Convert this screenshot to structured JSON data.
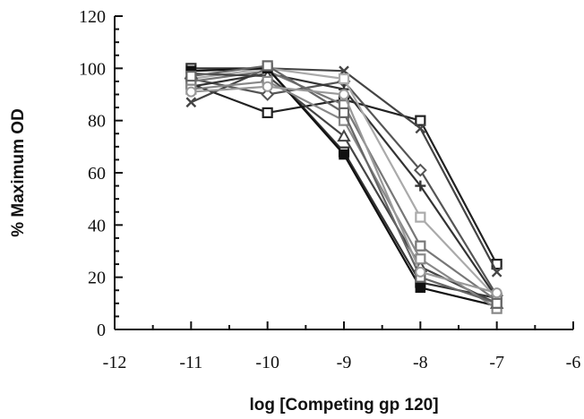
{
  "chart_data": {
    "type": "line",
    "title": "",
    "xlabel": "log [Competing gp 120]",
    "ylabel": "% Maximum OD",
    "xlim": [
      -12,
      -6
    ],
    "ylim": [
      0,
      120
    ],
    "x_ticks": [
      -12,
      -11,
      -10,
      -9,
      -8,
      -7,
      -6
    ],
    "y_ticks": [
      0,
      20,
      40,
      60,
      80,
      100,
      120
    ],
    "x_tick_labels": [
      "-12",
      "-11",
      "-10",
      "-9",
      "-8",
      "-7",
      "-6"
    ],
    "y_tick_labels": [
      "0",
      "20",
      "40",
      "60",
      "80",
      "100",
      "120"
    ],
    "grid": false,
    "legend": "none",
    "x": [
      -11,
      -10,
      -9,
      -8,
      -7
    ],
    "series": [
      {
        "marker": "square-open",
        "color": "#333333",
        "values": [
          100,
          100,
          68,
          18,
          12
        ]
      },
      {
        "marker": "square-open",
        "color": "#222222",
        "values": [
          94,
          83,
          88,
          80,
          25
        ]
      },
      {
        "marker": "cross",
        "color": "#444444",
        "values": [
          87,
          100,
          99,
          77,
          22
        ]
      },
      {
        "marker": "diamond",
        "color": "#555555",
        "values": [
          96,
          90,
          95,
          61,
          13
        ]
      },
      {
        "marker": "plus",
        "color": "#333333",
        "values": [
          93,
          98,
          92,
          55,
          12
        ]
      },
      {
        "marker": "square-open",
        "color": "#aaaaaa",
        "values": [
          96,
          100,
          96,
          43,
          12
        ]
      },
      {
        "marker": "square-open",
        "color": "#777777",
        "values": [
          95,
          99,
          86,
          32,
          11
        ]
      },
      {
        "marker": "triangle",
        "color": "#444444",
        "values": [
          98,
          97,
          74,
          24,
          10
        ]
      },
      {
        "marker": "square-filled",
        "color": "#111111",
        "values": [
          99,
          100,
          67,
          16,
          9
        ]
      },
      {
        "marker": "square-open",
        "color": "#888888",
        "values": [
          92,
          95,
          80,
          27,
          8
        ]
      },
      {
        "marker": "square-open",
        "color": "#666666",
        "values": [
          97,
          101,
          83,
          20,
          10
        ]
      },
      {
        "marker": "circle",
        "color": "#999999",
        "values": [
          91,
          93,
          90,
          22,
          14
        ]
      }
    ]
  }
}
